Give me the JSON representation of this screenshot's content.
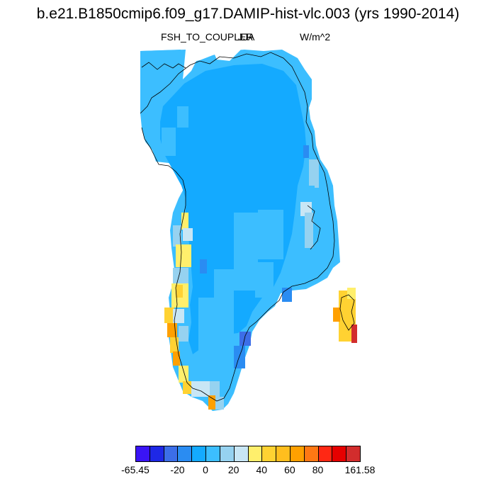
{
  "figure": {
    "title": "b.e21.B1850cmip6.f09_g17.DAMIP-hist-vlc.003 (yrs 1990-2014)",
    "variable": "FSH_TO_COUPLER",
    "season": "JJA",
    "units": "W/m^2"
  },
  "colorbar": {
    "colors": [
      "#3a14f6",
      "#1e28e6",
      "#3c6ee8",
      "#2a8cf2",
      "#14aaff",
      "#3cbeff",
      "#96d2f0",
      "#c8e6f5",
      "#ffef6c",
      "#ffd232",
      "#ffbe1e",
      "#ffa000",
      "#ff7814",
      "#ff2814",
      "#e60000",
      "#d22d2d"
    ],
    "labels": [
      "-65.45",
      "-20",
      "0",
      "20",
      "40",
      "60",
      "80",
      "161.58"
    ],
    "label_positions": [
      0,
      3,
      5,
      7,
      9,
      11,
      13,
      16
    ]
  }
}
